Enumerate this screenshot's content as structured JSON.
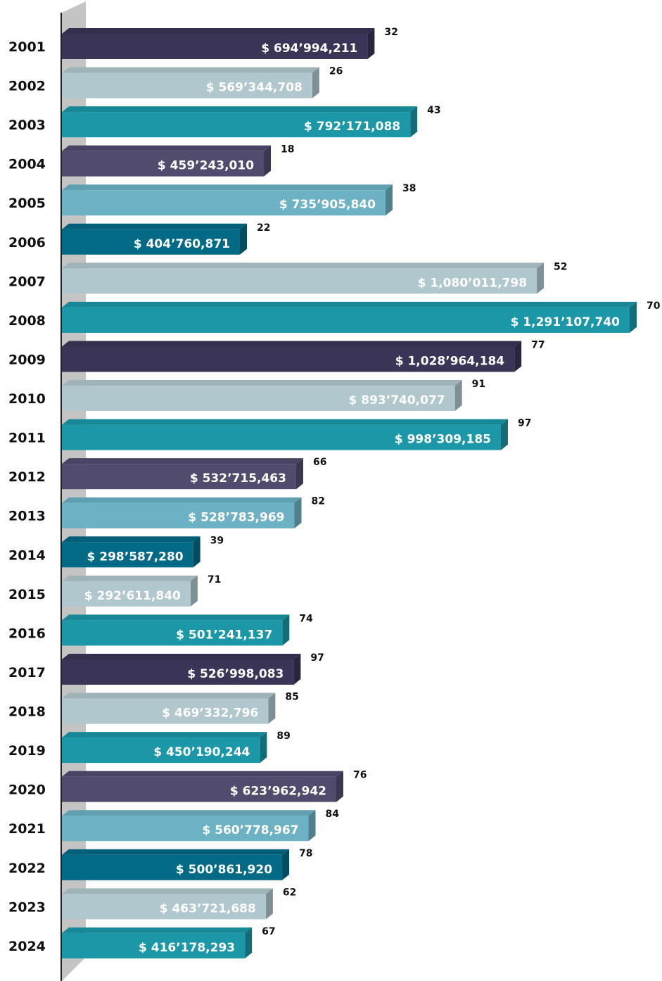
{
  "chart_data": {
    "type": "bar",
    "orientation": "horizontal",
    "categories": [
      "2001",
      "2002",
      "2003",
      "2004",
      "2005",
      "2006",
      "2007",
      "2008",
      "2009",
      "2010",
      "2011",
      "2012",
      "2013",
      "2014",
      "2015",
      "2016",
      "2017",
      "2018",
      "2019",
      "2020",
      "2021",
      "2022",
      "2023",
      "2024"
    ],
    "values": [
      694994211,
      569344708,
      792171088,
      459243010,
      735905840,
      404760871,
      1080011798,
      1291107740,
      1028964184,
      893740077,
      998309185,
      532715463,
      528783969,
      298587280,
      292611840,
      501241137,
      526998083,
      469332796,
      450190244,
      623962942,
      560778967,
      500861920,
      463721688,
      416178293
    ],
    "value_labels": [
      "$ 694’994,211",
      "$ 569’344,708",
      "$ 792’171,088",
      "$ 459’243,010",
      "$ 735’905,840",
      "$ 404’760,871",
      "$ 1,080’011,798",
      "$ 1,291’107,740",
      "$ 1,028’964,184",
      "$ 893’740,077",
      "$ 998’309,185",
      "$ 532’715,463",
      "$ 528’783,969",
      "$ 298’587,280",
      "$ 292’611,840",
      "$ 501’241,137",
      "$ 526’998,083",
      "$ 469’332,796",
      "$ 450’190,244",
      "$ 623’962,942",
      "$ 560’778,967",
      "$ 500’861,920",
      "$ 463’721,688",
      "$ 416’178,293"
    ],
    "counts": [
      32,
      26,
      43,
      18,
      38,
      22,
      52,
      70,
      77,
      91,
      97,
      66,
      82,
      39,
      71,
      74,
      97,
      85,
      89,
      76,
      84,
      78,
      62,
      67
    ],
    "bar_colors": [
      "#3a3456",
      "#b0c8cd",
      "#1b97a8",
      "#514c6e",
      "#6cb2c4",
      "#036a86",
      "#b0c8cd",
      "#1b97a8",
      "#3a3456",
      "#b0c8cd",
      "#1b97a8",
      "#514c6e",
      "#6cb2c4",
      "#036a86",
      "#b0c8cd",
      "#1b97a8",
      "#3a3456",
      "#b0c8cd",
      "#1b97a8",
      "#514c6e",
      "#6cb2c4",
      "#036a86",
      "#b0c8cd",
      "#1b97a8"
    ],
    "xlim": [
      0,
      1291107740
    ],
    "style": "3d",
    "grid": false,
    "legend": "none"
  }
}
